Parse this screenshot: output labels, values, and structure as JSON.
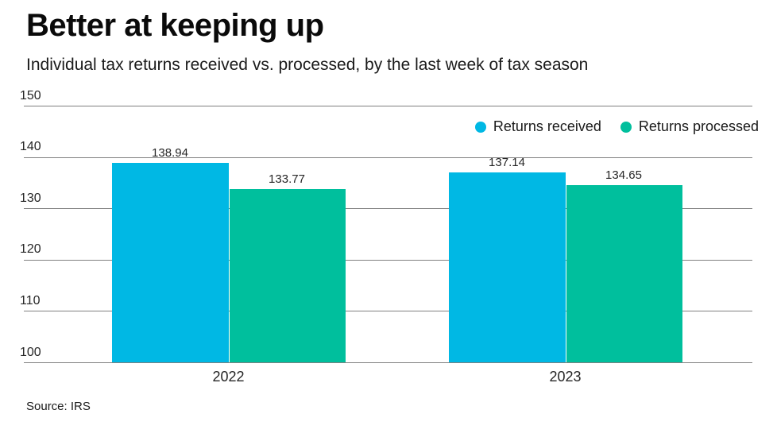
{
  "header": {
    "title": "Better at keeping up",
    "subtitle": "Individual tax returns received vs. processed, by the last week of tax season"
  },
  "source_note": "Source: IRS",
  "colors": {
    "received": "#00b8e4",
    "processed": "#00bf9d",
    "gridline": "#808080",
    "background": "#ffffff",
    "text": "#262626"
  },
  "chart_data": {
    "type": "bar",
    "title": "Better at keeping up",
    "subtitle": "Individual tax returns received vs. processed, by the last week of tax season",
    "categories": [
      "2022",
      "2023"
    ],
    "series": [
      {
        "name": "Returns received",
        "color": "#00b8e4",
        "values": [
          138.94,
          137.14
        ]
      },
      {
        "name": "Returns processed",
        "color": "#00bf9d",
        "values": [
          133.77,
          134.65
        ]
      }
    ],
    "value_label_format": "2-decimals",
    "xlabel": "",
    "ylabel": "",
    "ylim": [
      100,
      150
    ],
    "yticks": [
      100,
      110,
      120,
      130,
      140,
      150
    ],
    "grid": true,
    "legend_position": "top-right",
    "source": "Source: IRS"
  }
}
